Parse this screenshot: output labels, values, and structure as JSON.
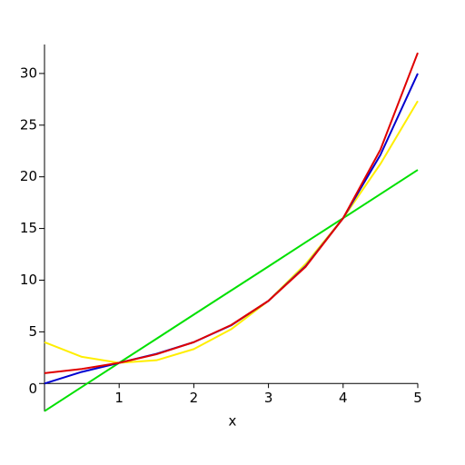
{
  "chart_data": {
    "type": "line",
    "x": [
      0,
      0.5,
      1,
      1.5,
      2,
      2.5,
      3,
      3.5,
      4,
      4.5,
      5
    ],
    "series": [
      {
        "name": "green",
        "color": "#00e000",
        "values": [
          -2.67,
          -0.33,
          2,
          4.33,
          6.67,
          9,
          11.33,
          13.67,
          16,
          18.33,
          20.67
        ]
      },
      {
        "name": "yellow",
        "color": "#ffee00",
        "values": [
          4,
          2.58,
          2,
          2.25,
          3.33,
          5.25,
          8,
          11.58,
          16,
          21.25,
          27.33
        ]
      },
      {
        "name": "blue",
        "color": "#0000d0",
        "values": [
          0,
          1.125,
          2,
          2.875,
          4,
          5.625,
          8,
          11.375,
          16,
          22.125,
          30
        ]
      },
      {
        "name": "red",
        "color": "#e00000",
        "values": [
          1,
          1.41,
          2,
          2.83,
          4,
          5.66,
          8,
          11.31,
          16,
          22.63,
          32
        ]
      }
    ],
    "xlabel": "x",
    "xlim": [
      0,
      5
    ],
    "ylim": [
      -2.7,
      32.1
    ],
    "xticks": [
      1,
      2,
      3,
      4,
      5
    ],
    "yticks": [
      0,
      5,
      10,
      15,
      20,
      25,
      30
    ]
  }
}
